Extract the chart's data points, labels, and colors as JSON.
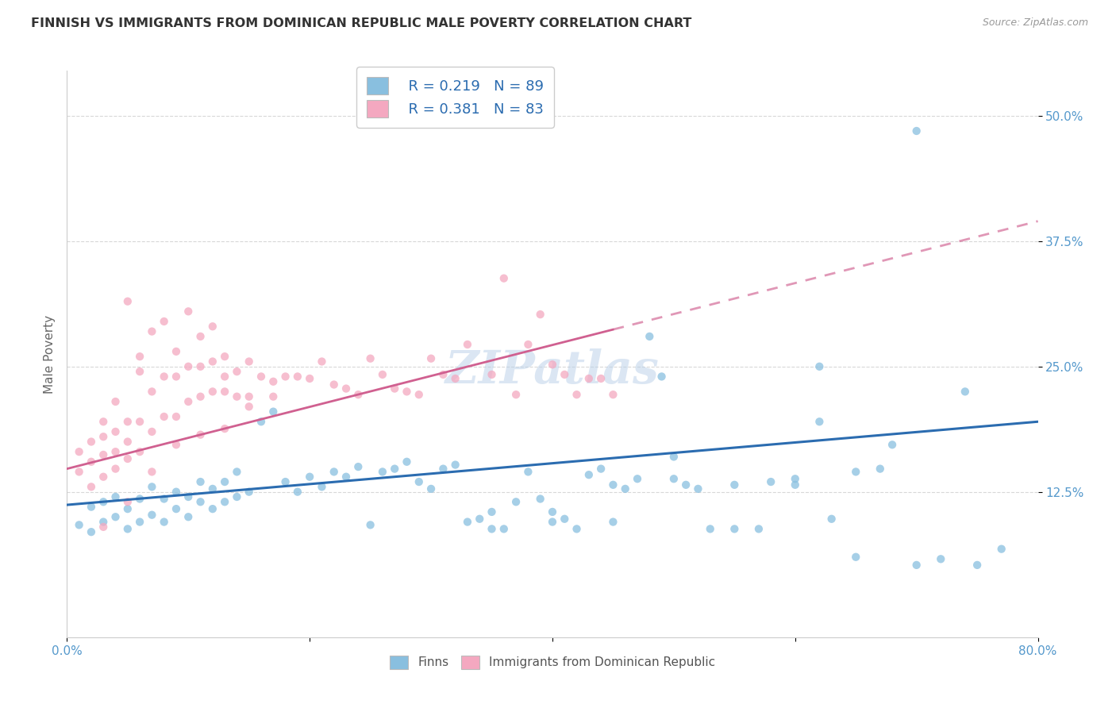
{
  "title": "FINNISH VS IMMIGRANTS FROM DOMINICAN REPUBLIC MALE POVERTY CORRELATION CHART",
  "source": "Source: ZipAtlas.com",
  "ylabel": "Male Poverty",
  "ytick_labels": [
    "12.5%",
    "25.0%",
    "37.5%",
    "50.0%"
  ],
  "ytick_values": [
    0.125,
    0.25,
    0.375,
    0.5
  ],
  "xlim": [
    0.0,
    0.8
  ],
  "ylim": [
    -0.02,
    0.545
  ],
  "finns_R": 0.219,
  "finns_N": 89,
  "dr_R": 0.381,
  "dr_N": 83,
  "finns_color": "#89bfdf",
  "dr_color": "#f4a8c0",
  "finns_line_color": "#2b6cb0",
  "dr_line_color": "#d06090",
  "watermark": "ZIPatlas",
  "background_color": "#ffffff",
  "grid_color": "#d8d8d8",
  "finns_line_x0": 0.0,
  "finns_line_y0": 0.112,
  "finns_line_x1": 0.8,
  "finns_line_y1": 0.195,
  "dr_line_x0": 0.0,
  "dr_line_y0": 0.148,
  "dr_line_x1": 0.8,
  "dr_line_y1": 0.395,
  "finns_scatter_x": [
    0.01,
    0.02,
    0.02,
    0.03,
    0.03,
    0.04,
    0.04,
    0.05,
    0.05,
    0.06,
    0.06,
    0.07,
    0.07,
    0.08,
    0.08,
    0.09,
    0.09,
    0.1,
    0.1,
    0.11,
    0.11,
    0.12,
    0.12,
    0.13,
    0.13,
    0.14,
    0.14,
    0.15,
    0.16,
    0.17,
    0.18,
    0.19,
    0.2,
    0.21,
    0.22,
    0.23,
    0.24,
    0.25,
    0.26,
    0.27,
    0.28,
    0.29,
    0.3,
    0.31,
    0.32,
    0.33,
    0.34,
    0.35,
    0.36,
    0.37,
    0.38,
    0.39,
    0.4,
    0.41,
    0.42,
    0.43,
    0.44,
    0.45,
    0.46,
    0.47,
    0.48,
    0.49,
    0.5,
    0.51,
    0.52,
    0.53,
    0.55,
    0.57,
    0.58,
    0.6,
    0.62,
    0.63,
    0.65,
    0.67,
    0.68,
    0.7,
    0.72,
    0.74,
    0.75,
    0.77,
    0.62,
    0.35,
    0.4,
    0.45,
    0.5,
    0.55,
    0.6,
    0.65,
    0.7
  ],
  "finns_scatter_y": [
    0.092,
    0.085,
    0.11,
    0.095,
    0.115,
    0.1,
    0.12,
    0.088,
    0.108,
    0.095,
    0.118,
    0.102,
    0.13,
    0.095,
    0.118,
    0.108,
    0.125,
    0.1,
    0.12,
    0.115,
    0.135,
    0.108,
    0.128,
    0.115,
    0.135,
    0.12,
    0.145,
    0.125,
    0.195,
    0.205,
    0.135,
    0.125,
    0.14,
    0.13,
    0.145,
    0.14,
    0.15,
    0.092,
    0.145,
    0.148,
    0.155,
    0.135,
    0.128,
    0.148,
    0.152,
    0.095,
    0.098,
    0.105,
    0.088,
    0.115,
    0.145,
    0.118,
    0.105,
    0.098,
    0.088,
    0.142,
    0.148,
    0.132,
    0.128,
    0.138,
    0.28,
    0.24,
    0.16,
    0.132,
    0.128,
    0.088,
    0.132,
    0.088,
    0.135,
    0.132,
    0.25,
    0.098,
    0.145,
    0.148,
    0.172,
    0.052,
    0.058,
    0.225,
    0.052,
    0.068,
    0.195,
    0.088,
    0.095,
    0.095,
    0.138,
    0.088,
    0.138,
    0.06,
    0.485
  ],
  "dr_scatter_x": [
    0.01,
    0.01,
    0.02,
    0.02,
    0.02,
    0.03,
    0.03,
    0.03,
    0.03,
    0.04,
    0.04,
    0.04,
    0.04,
    0.05,
    0.05,
    0.05,
    0.05,
    0.06,
    0.06,
    0.06,
    0.06,
    0.07,
    0.07,
    0.07,
    0.08,
    0.08,
    0.08,
    0.09,
    0.09,
    0.09,
    0.1,
    0.1,
    0.1,
    0.11,
    0.11,
    0.11,
    0.12,
    0.12,
    0.12,
    0.13,
    0.13,
    0.13,
    0.14,
    0.14,
    0.15,
    0.15,
    0.16,
    0.17,
    0.18,
    0.19,
    0.2,
    0.21,
    0.22,
    0.23,
    0.24,
    0.25,
    0.26,
    0.27,
    0.28,
    0.29,
    0.3,
    0.31,
    0.32,
    0.33,
    0.35,
    0.36,
    0.37,
    0.38,
    0.39,
    0.4,
    0.41,
    0.42,
    0.43,
    0.44,
    0.45,
    0.03,
    0.05,
    0.07,
    0.09,
    0.11,
    0.13,
    0.15,
    0.17
  ],
  "dr_scatter_y": [
    0.145,
    0.165,
    0.13,
    0.155,
    0.175,
    0.14,
    0.162,
    0.18,
    0.195,
    0.148,
    0.165,
    0.185,
    0.215,
    0.158,
    0.175,
    0.195,
    0.315,
    0.165,
    0.195,
    0.245,
    0.26,
    0.185,
    0.225,
    0.285,
    0.2,
    0.24,
    0.295,
    0.2,
    0.24,
    0.265,
    0.215,
    0.25,
    0.305,
    0.22,
    0.25,
    0.28,
    0.225,
    0.255,
    0.29,
    0.225,
    0.24,
    0.26,
    0.22,
    0.245,
    0.22,
    0.255,
    0.24,
    0.235,
    0.24,
    0.24,
    0.238,
    0.255,
    0.232,
    0.228,
    0.222,
    0.258,
    0.242,
    0.228,
    0.225,
    0.222,
    0.258,
    0.242,
    0.238,
    0.272,
    0.242,
    0.338,
    0.222,
    0.272,
    0.302,
    0.252,
    0.242,
    0.222,
    0.238,
    0.238,
    0.222,
    0.09,
    0.115,
    0.145,
    0.172,
    0.182,
    0.188,
    0.21,
    0.22
  ]
}
